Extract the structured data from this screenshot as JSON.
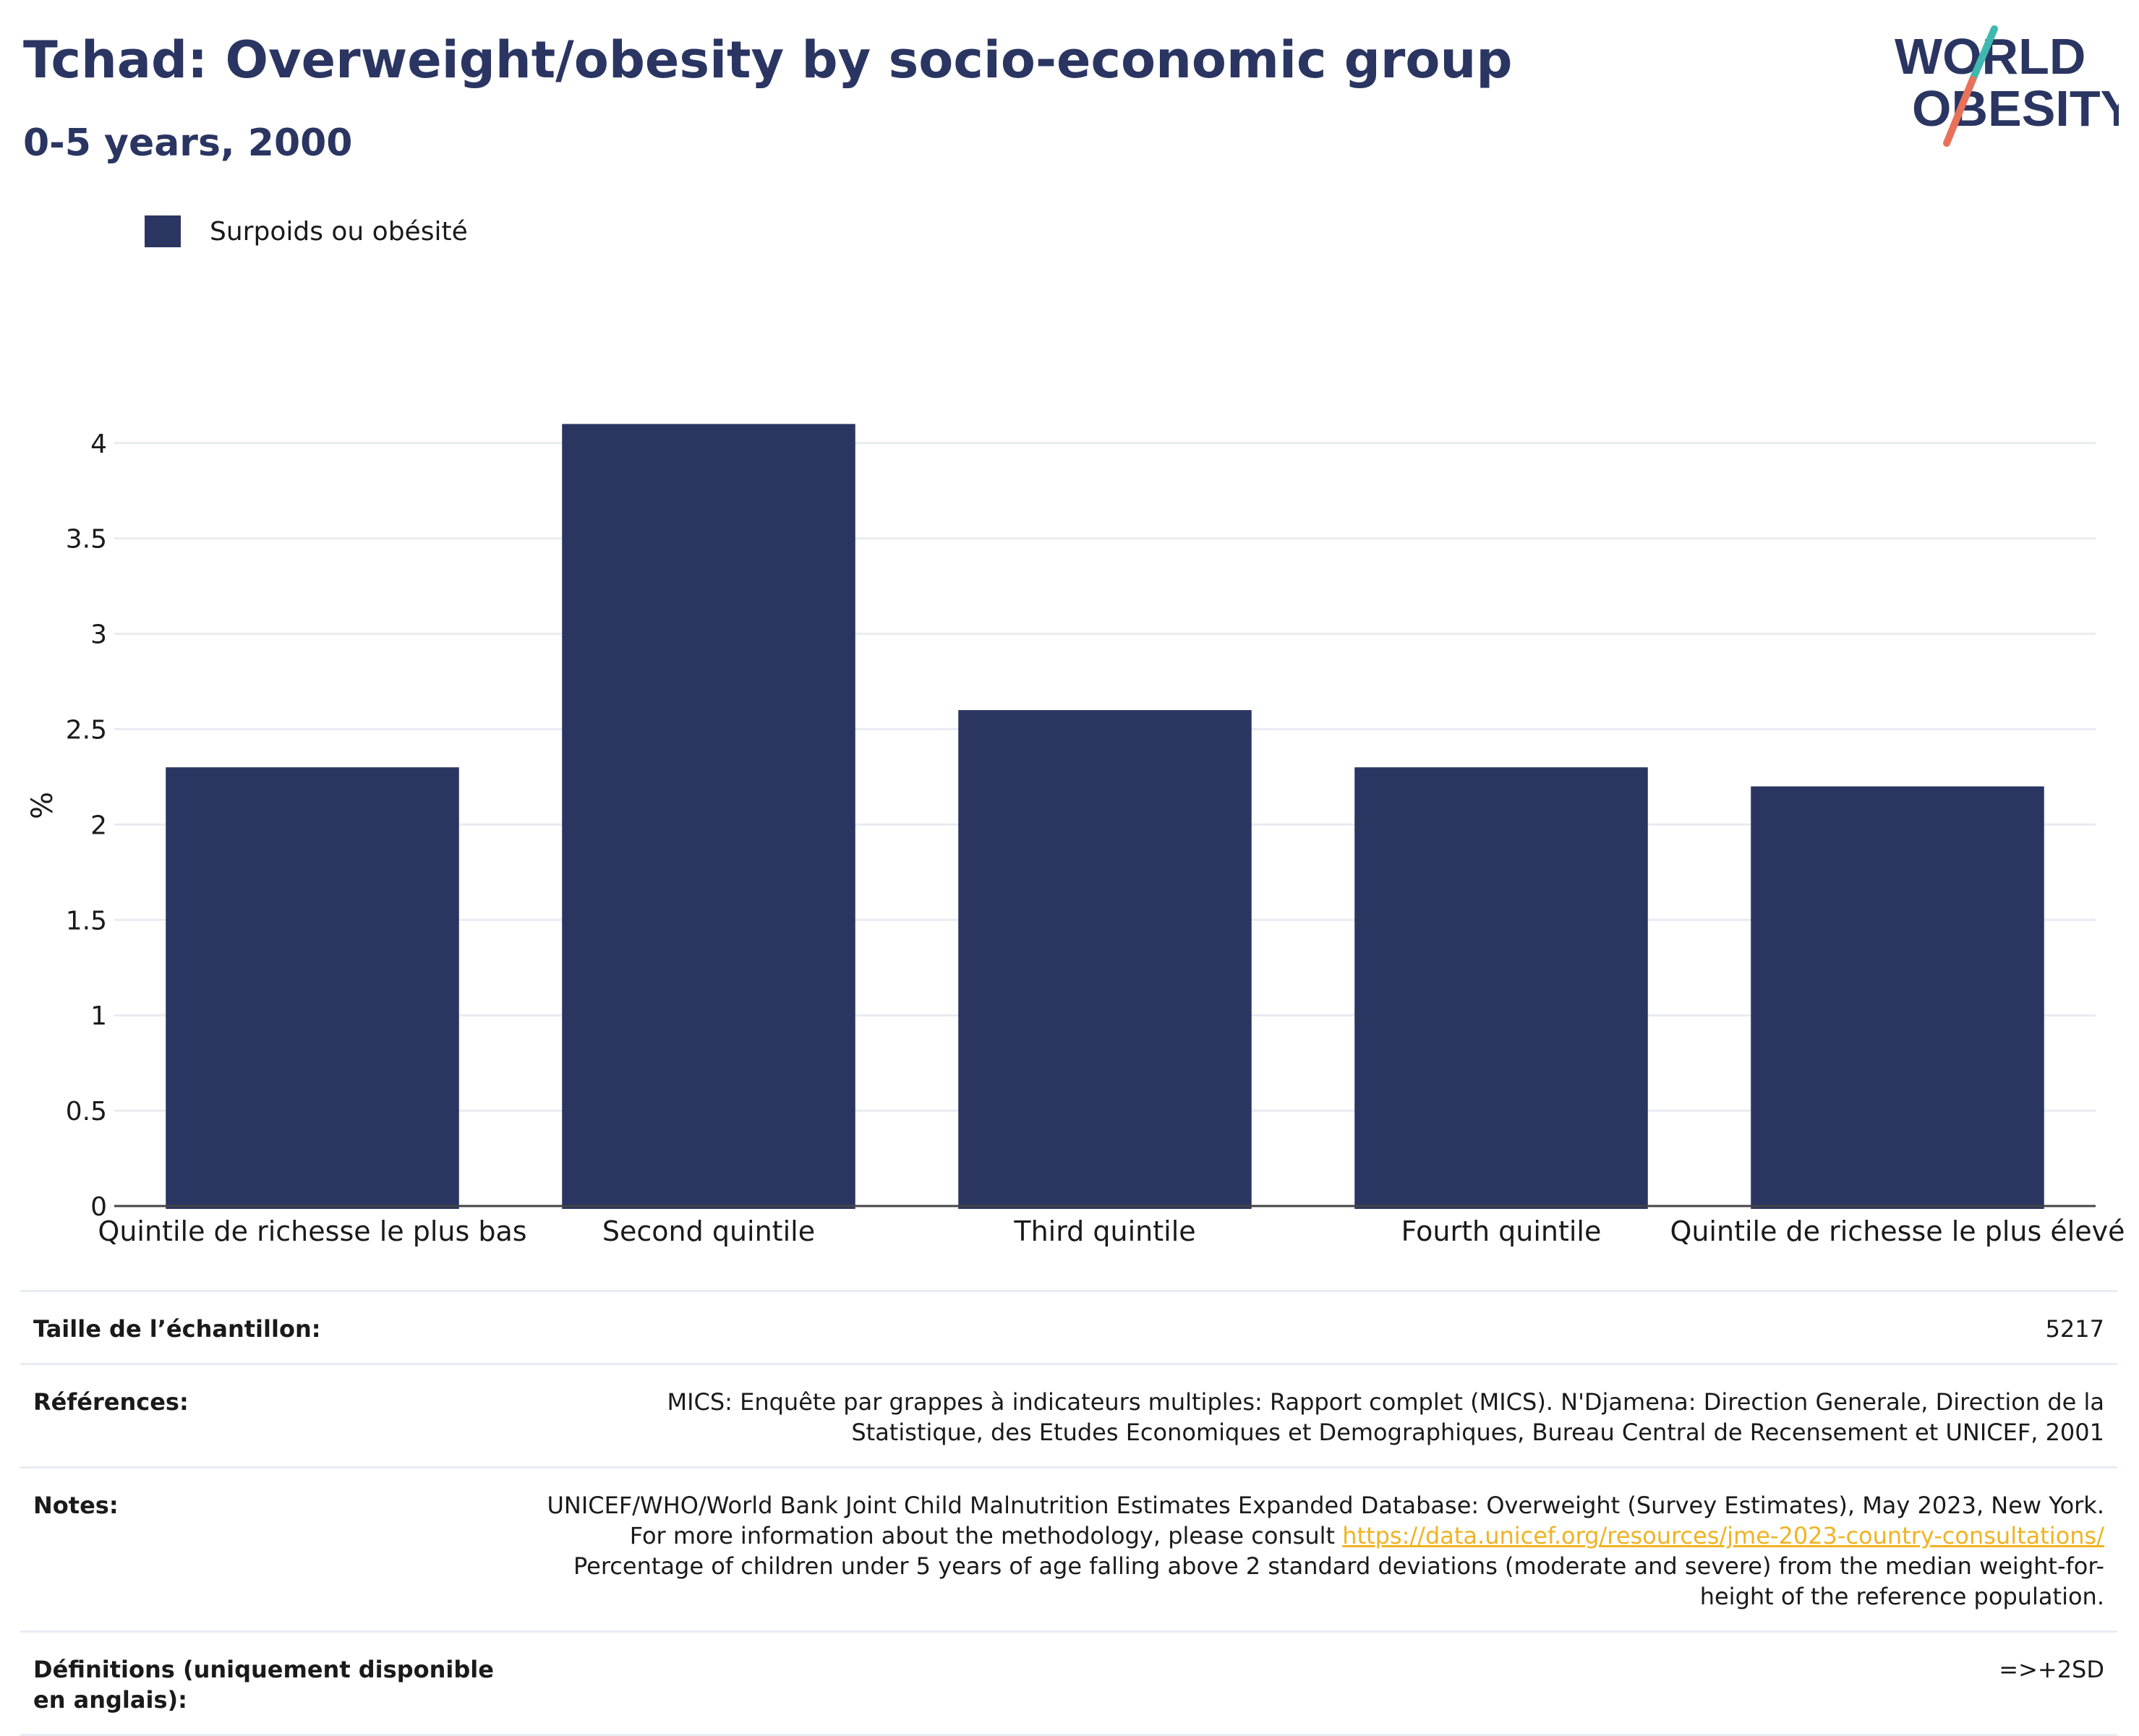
{
  "header": {
    "title": "Tchad: Overweight/obesity by socio-economic group",
    "subtitle": "0-5 years, 2000"
  },
  "logo": {
    "line1": "WORLD",
    "line2": "OBESITY",
    "colors": {
      "text": "#2a3562",
      "slash_top": "#3fb8b0",
      "slash_bottom": "#e8715a"
    }
  },
  "legend": {
    "label": "Surpoids ou obésité",
    "color": "#2a3562"
  },
  "chart_data": {
    "type": "bar",
    "categories": [
      "Quintile de richesse le plus bas",
      "Second quintile",
      "Third quintile",
      "Fourth quintile",
      "Quintile de richesse le plus élevé"
    ],
    "series": [
      {
        "name": "Surpoids ou obésité",
        "values": [
          2.3,
          4.1,
          2.6,
          2.3,
          2.2
        ],
        "color": "#2a3562"
      }
    ],
    "ylabel": "%",
    "ylim": [
      0,
      4.2
    ],
    "yticks": [
      0,
      0.5,
      1,
      1.5,
      2,
      2.5,
      3,
      3.5,
      4
    ],
    "ytick_labels": [
      "0",
      "0.5",
      "1",
      "1.5",
      "2",
      "2.5",
      "3",
      "3.5",
      "4"
    ],
    "grid": true,
    "legend_position": "top-left"
  },
  "info": {
    "sample_size": {
      "key": "Taille de l’échantillon:",
      "value": "5217"
    },
    "references": {
      "key": "Références:",
      "value": "MICS: Enquête par grappes à indicateurs multiples: Rapport complet (MICS). N'Djamena: Direction Generale, Direction de la Statistique, des Etudes Economiques et Demographiques, Bureau Central de Recensement et UNICEF, 2001"
    },
    "notes": {
      "key": "Notes:",
      "text_before": "UNICEF/WHO/World Bank Joint Child Malnutrition Estimates Expanded Database: Overweight (Survey Estimates), May 2023, New York. For more information about the methodology, please consult",
      "link": "https://data.unicef.org/resources/jme-2023-country-consultations/",
      "text_after": "Percentage of children under 5 years of age falling above 2 standard deviations (moderate and severe) from the median weight-for-height of the reference population."
    },
    "definitions": {
      "key": "Définitions (uniquement disponible en anglais):",
      "value": "=>+2SD"
    }
  }
}
